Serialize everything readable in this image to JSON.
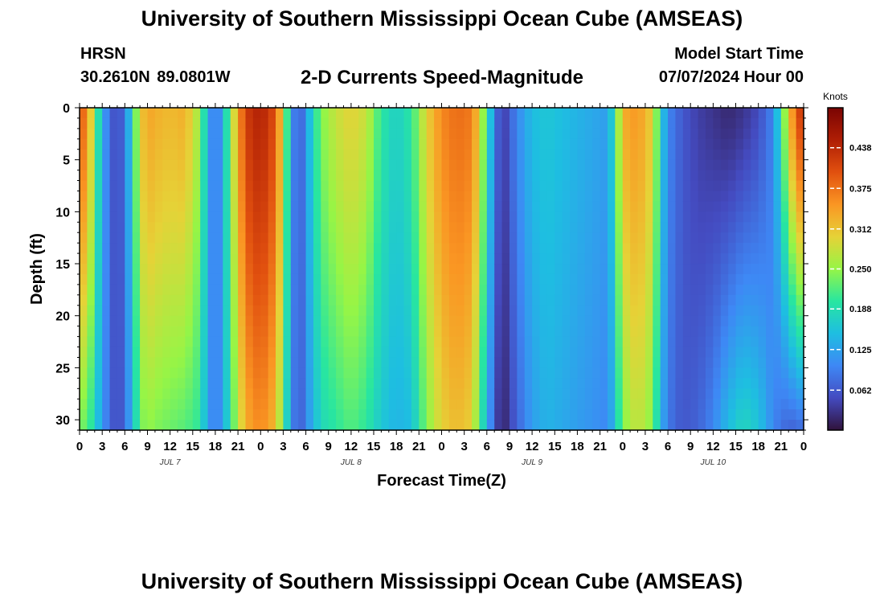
{
  "header": {
    "title": "University of Southern Mississippi Ocean Cube (AMSEAS)",
    "station": "HRSN",
    "coordinates": "30.2610N  89.0801W",
    "subtitle": "2-D Currents Speed-Magnitude",
    "model_start_label": "Model Start Time",
    "model_start_value": "07/07/2024 Hour 00"
  },
  "footer": {
    "title": "University of Southern Mississippi Ocean Cube (AMSEAS)"
  },
  "chart_data": {
    "type": "heatmap",
    "title": "2-D Currents Speed-Magnitude",
    "xlabel": "Forecast Time(Z)",
    "ylabel": "Depth (ft)",
    "x_range_hours": [
      0,
      96
    ],
    "ylim": [
      0,
      31
    ],
    "y_ticks": [
      0,
      5,
      10,
      15,
      20,
      25,
      30
    ],
    "x_tick_labels": [
      "0",
      "3",
      "6",
      "9",
      "12",
      "15",
      "18",
      "21",
      "0",
      "3",
      "6",
      "9",
      "12",
      "15",
      "18",
      "21",
      "0",
      "3",
      "6",
      "9",
      "12",
      "15",
      "18",
      "21",
      "0",
      "3",
      "6",
      "9",
      "12",
      "15",
      "18",
      "21",
      "0"
    ],
    "day_labels": [
      {
        "label": "JUL 7",
        "hour": 12
      },
      {
        "label": "JUL 8",
        "hour": 36
      },
      {
        "label": "JUL 9",
        "hour": 60
      },
      {
        "label": "JUL 10",
        "hour": 84
      }
    ],
    "colorbar": {
      "label": "Knots",
      "min": 0.0,
      "max": 0.5,
      "ticks": [
        "0.062",
        "0.125",
        "0.188",
        "0.250",
        "0.312",
        "0.375",
        "0.438"
      ]
    },
    "speed_profile_knots": {
      "hours": [
        0,
        1,
        2,
        3,
        4,
        5,
        6,
        7,
        8,
        9,
        10,
        12,
        14,
        16,
        17,
        18,
        19,
        20,
        22,
        24,
        26,
        27,
        28,
        29,
        30,
        32,
        34,
        36,
        38,
        40,
        42,
        44,
        46,
        48,
        50,
        52,
        53,
        54,
        55,
        56,
        58,
        60,
        62,
        64,
        66,
        68,
        70,
        71,
        72,
        74,
        76,
        77,
        78,
        79,
        80,
        82,
        84,
        86,
        88,
        90,
        92,
        93,
        94,
        95,
        96
      ],
      "surface": [
        0.4,
        0.36,
        0.25,
        0.13,
        0.08,
        0.04,
        0.09,
        0.18,
        0.3,
        0.34,
        0.33,
        0.32,
        0.33,
        0.25,
        0.13,
        0.08,
        0.13,
        0.25,
        0.42,
        0.45,
        0.4,
        0.28,
        0.14,
        0.04,
        0.12,
        0.24,
        0.28,
        0.3,
        0.28,
        0.2,
        0.17,
        0.2,
        0.3,
        0.36,
        0.38,
        0.37,
        0.3,
        0.2,
        0.1,
        0.03,
        0.1,
        0.15,
        0.16,
        0.15,
        0.14,
        0.13,
        0.12,
        0.2,
        0.33,
        0.35,
        0.3,
        0.18,
        0.1,
        0.08,
        0.06,
        0.04,
        0.03,
        0.02,
        0.03,
        0.05,
        0.1,
        0.2,
        0.3,
        0.4,
        0.43
      ],
      "bottom": [
        0.24,
        0.22,
        0.18,
        0.11,
        0.08,
        0.04,
        0.08,
        0.14,
        0.23,
        0.25,
        0.24,
        0.23,
        0.22,
        0.2,
        0.12,
        0.09,
        0.12,
        0.2,
        0.33,
        0.36,
        0.32,
        0.22,
        0.12,
        0.05,
        0.1,
        0.18,
        0.2,
        0.22,
        0.2,
        0.16,
        0.14,
        0.15,
        0.24,
        0.3,
        0.32,
        0.3,
        0.22,
        0.14,
        0.06,
        0.01,
        0.07,
        0.12,
        0.14,
        0.13,
        0.12,
        0.11,
        0.1,
        0.15,
        0.24,
        0.28,
        0.24,
        0.14,
        0.09,
        0.07,
        0.06,
        0.07,
        0.1,
        0.15,
        0.18,
        0.16,
        0.1,
        0.08,
        0.07,
        0.07,
        0.08
      ]
    }
  }
}
